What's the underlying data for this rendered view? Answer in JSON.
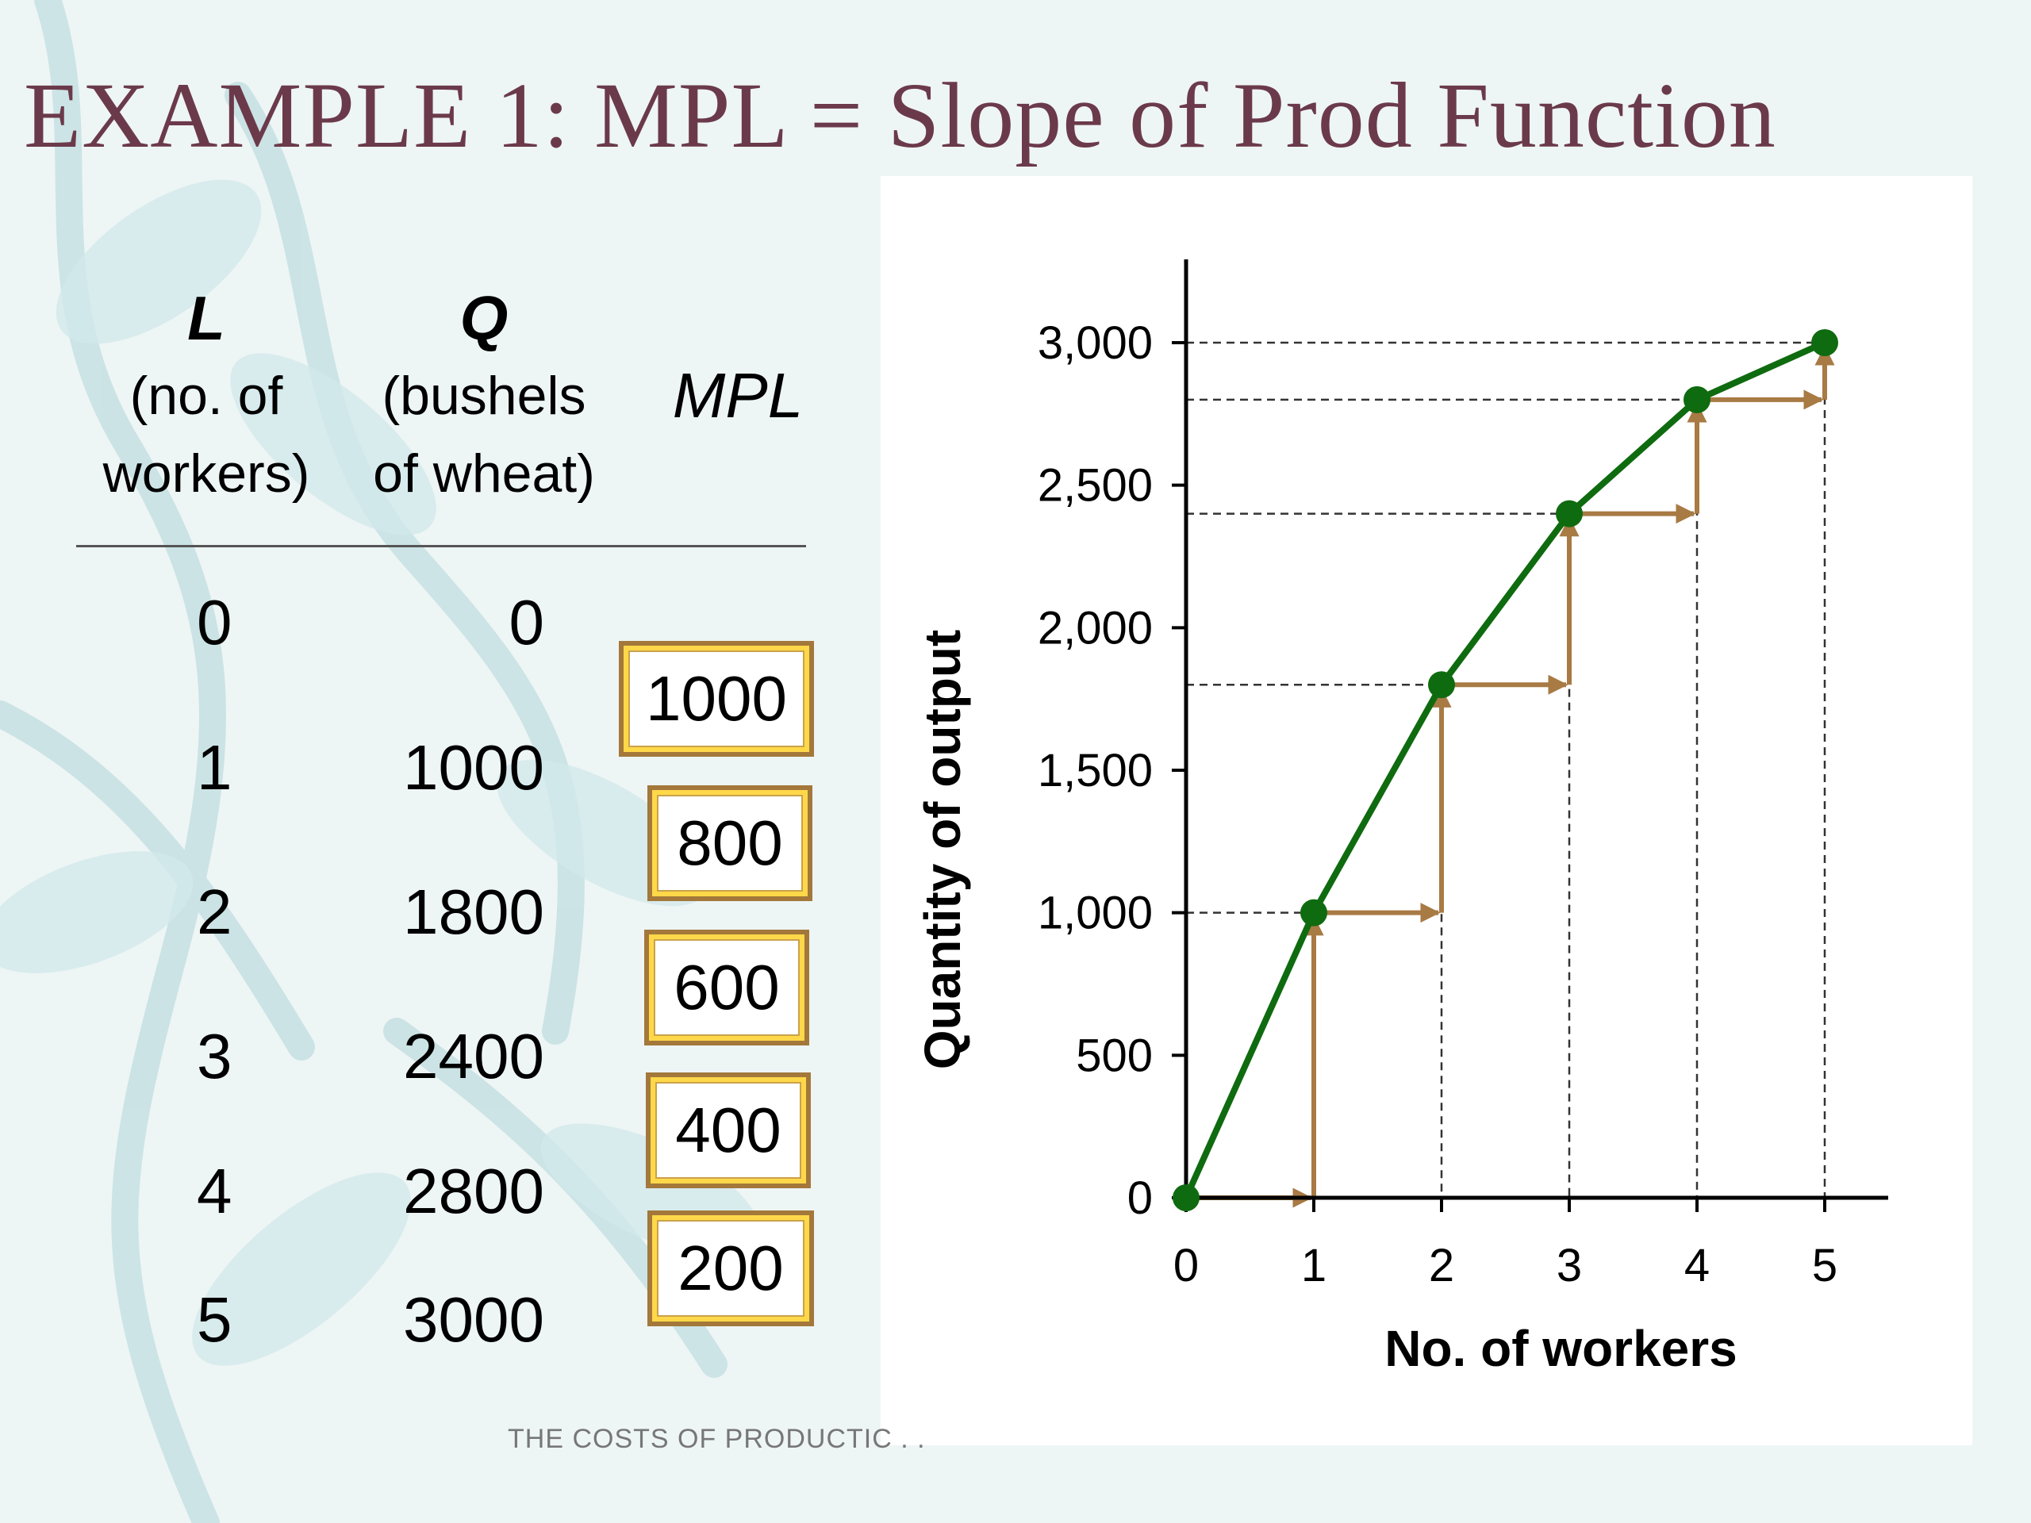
{
  "title": "EXAMPLE 1: MPL = Slope of Prod Function",
  "table": {
    "headers": {
      "L": {
        "symbol": "L",
        "line1": "(no. of",
        "line2": "workers)"
      },
      "Q": {
        "symbol": "Q",
        "line1": "(bushels",
        "line2": "of wheat)"
      },
      "MPL": {
        "label": "MPL"
      }
    },
    "rows": [
      {
        "L": "0",
        "Q": "0"
      },
      {
        "L": "1",
        "Q": "1000"
      },
      {
        "L": "2",
        "Q": "1800"
      },
      {
        "L": "3",
        "Q": "2400"
      },
      {
        "L": "4",
        "Q": "2800"
      },
      {
        "L": "5",
        "Q": "3000"
      }
    ],
    "mpl": [
      "1000",
      "800",
      "600",
      "400",
      "200"
    ]
  },
  "footer": "THE COSTS OF PRODUCTIC . .",
  "colors": {
    "title": "#6b3a4a",
    "curve": "#0f6b0f",
    "arrows": "#a87a44",
    "box_border": "#a3783a",
    "box_fill": "#ffd84a"
  },
  "chart_data": {
    "type": "line",
    "x": [
      0,
      1,
      2,
      3,
      4,
      5
    ],
    "y": [
      0,
      1000,
      1800,
      2400,
      2800,
      3000
    ],
    "xlabel": "No. of workers",
    "ylabel": "Quantity of output",
    "xlim": [
      0,
      5
    ],
    "ylim": [
      0,
      3000
    ],
    "xticks": [
      "0",
      "1",
      "2",
      "3",
      "4",
      "5"
    ],
    "yticks": [
      {
        "value": 0,
        "label": "0"
      },
      {
        "value": 500,
        "label": "500"
      },
      {
        "value": 1000,
        "label": "1,000"
      },
      {
        "value": 1500,
        "label": "1,500"
      },
      {
        "value": 2000,
        "label": "2,000"
      },
      {
        "value": 2500,
        "label": "2,500"
      },
      {
        "value": 3000,
        "label": "3,000"
      }
    ],
    "grid": false,
    "annotations": "dashed guide lines from each point to both axes; step arrows showing run of 1 worker and rise equal to MPL"
  }
}
